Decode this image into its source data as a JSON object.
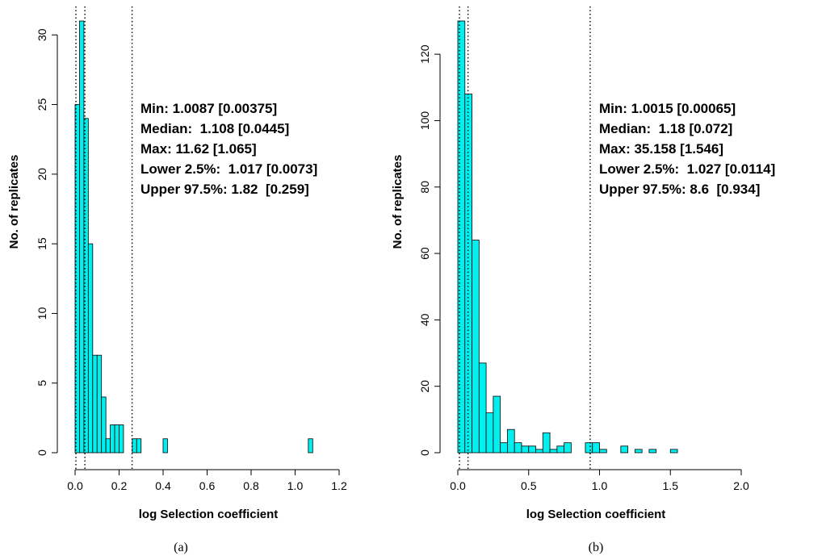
{
  "chart_data": [
    {
      "type": "histogram",
      "caption": "(a)",
      "xlabel": "log Selection coefficient",
      "ylabel": "No. of replicates",
      "xlim": [
        0,
        1.2
      ],
      "ylim": [
        0,
        31
      ],
      "x_ticks": [
        0.0,
        0.2,
        0.4,
        0.6,
        0.8,
        1.0,
        1.2
      ],
      "x_tick_labels": [
        "0.0",
        "0.2",
        "0.4",
        "0.6",
        "0.8",
        "1.0",
        "1.2"
      ],
      "y_ticks": [
        0,
        5,
        10,
        15,
        20,
        25,
        30
      ],
      "y_tick_labels": [
        "0",
        "5",
        "10",
        "15",
        "20",
        "25",
        "30"
      ],
      "bin_width": 0.02,
      "bins": [
        {
          "start": 0.0,
          "count": 25
        },
        {
          "start": 0.02,
          "count": 31
        },
        {
          "start": 0.04,
          "count": 24
        },
        {
          "start": 0.06,
          "count": 15
        },
        {
          "start": 0.08,
          "count": 7
        },
        {
          "start": 0.1,
          "count": 7
        },
        {
          "start": 0.12,
          "count": 4
        },
        {
          "start": 0.14,
          "count": 1
        },
        {
          "start": 0.16,
          "count": 2
        },
        {
          "start": 0.18,
          "count": 2
        },
        {
          "start": 0.2,
          "count": 2
        },
        {
          "start": 0.26,
          "count": 1
        },
        {
          "start": 0.28,
          "count": 1
        },
        {
          "start": 0.4,
          "count": 1
        },
        {
          "start": 1.06,
          "count": 1
        }
      ],
      "reference_lines_x": [
        0.0037,
        0.0445,
        0.259
      ],
      "bar_color": "#00f0f0",
      "stats": [
        "Min: 1.0087 [0.00375]",
        "Median:  1.108 [0.0445]",
        "Max: 11.62 [1.065]",
        "Lower 2.5%:  1.017 [0.0073]",
        "Upper 97.5%: 1.82  [0.259]"
      ]
    },
    {
      "type": "histogram",
      "caption": "(b)",
      "xlabel": "log Selection coefficient",
      "ylabel": "No. of replicates",
      "xlim": [
        0,
        2.0
      ],
      "ylim": [
        0,
        130
      ],
      "x_ticks": [
        0.0,
        0.5,
        1.0,
        1.5,
        2.0
      ],
      "x_tick_labels": [
        "0.0",
        "0.5",
        "1.0",
        "1.5",
        "2.0"
      ],
      "y_ticks": [
        0,
        20,
        40,
        60,
        80,
        100,
        120
      ],
      "y_tick_labels": [
        "0",
        "20",
        "40",
        "60",
        "80",
        "100",
        "120"
      ],
      "bin_width": 0.05,
      "bins": [
        {
          "start": 0.0,
          "count": 130
        },
        {
          "start": 0.05,
          "count": 108
        },
        {
          "start": 0.1,
          "count": 64
        },
        {
          "start": 0.15,
          "count": 27
        },
        {
          "start": 0.2,
          "count": 12
        },
        {
          "start": 0.25,
          "count": 17
        },
        {
          "start": 0.3,
          "count": 3
        },
        {
          "start": 0.35,
          "count": 7
        },
        {
          "start": 0.4,
          "count": 3
        },
        {
          "start": 0.45,
          "count": 2
        },
        {
          "start": 0.5,
          "count": 2
        },
        {
          "start": 0.55,
          "count": 1
        },
        {
          "start": 0.6,
          "count": 6
        },
        {
          "start": 0.65,
          "count": 1
        },
        {
          "start": 0.7,
          "count": 2
        },
        {
          "start": 0.75,
          "count": 3
        },
        {
          "start": 0.9,
          "count": 3
        },
        {
          "start": 0.95,
          "count": 3
        },
        {
          "start": 1.0,
          "count": 1
        },
        {
          "start": 1.15,
          "count": 2
        },
        {
          "start": 1.25,
          "count": 1
        },
        {
          "start": 1.35,
          "count": 1
        },
        {
          "start": 1.5,
          "count": 1
        }
      ],
      "reference_lines_x": [
        0.0114,
        0.072,
        0.934
      ],
      "bar_color": "#00f0f0",
      "stats": [
        "Min: 1.0015 [0.00065]",
        "Median:  1.18 [0.072]",
        "Max: 35.158 [1.546]",
        "Lower 2.5%:  1.027 [0.0114]",
        "Upper 97.5%: 8.6  [0.934]"
      ]
    }
  ]
}
